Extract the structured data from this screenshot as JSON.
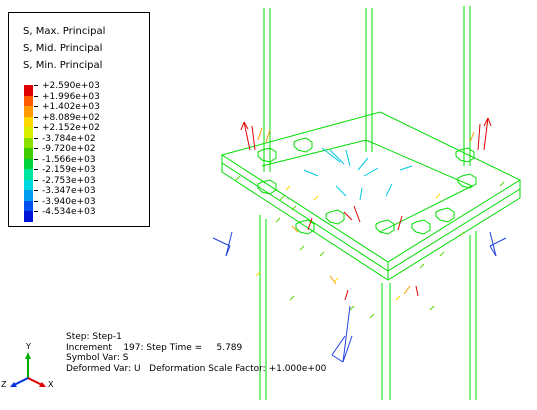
{
  "legend": {
    "titles": [
      "S, Max. Principal",
      "S, Mid. Principal",
      "S, Min. Principal"
    ],
    "entries": [
      {
        "value": "+2.590e+03",
        "color": "#e00000"
      },
      {
        "value": "+1.996e+03",
        "color": "#ff5a00"
      },
      {
        "value": "+1.402e+03",
        "color": "#ff9a00"
      },
      {
        "value": "+8.089e+02",
        "color": "#ffd800"
      },
      {
        "value": "+2.152e+02",
        "color": "#d8f000"
      },
      {
        "value": "-3.784e+02",
        "color": "#8ce000"
      },
      {
        "value": "-9.720e+02",
        "color": "#3ecb00"
      },
      {
        "value": "-1.566e+03",
        "color": "#00d23c"
      },
      {
        "value": "-2.159e+03",
        "color": "#00e6a0"
      },
      {
        "value": "-2.753e+03",
        "color": "#00d8e0"
      },
      {
        "value": "-3.347e+03",
        "color": "#009cf0"
      },
      {
        "value": "-3.940e+03",
        "color": "#0050f0"
      },
      {
        "value": "-4.534e+03",
        "color": "#0014d8"
      }
    ]
  },
  "info": {
    "step": "Step: Step-1",
    "increment": "Increment    197: Step Time =     5.789",
    "symbol_var": "Symbol Var: S",
    "deformed_var": "Deformed Var: U   Deformation Scale Factor: +1.000e+00"
  },
  "triad": {
    "x": "X",
    "y": "Y",
    "z": "Z"
  },
  "colors": {
    "mesh": "#00dd00",
    "background": "#ffffff"
  }
}
